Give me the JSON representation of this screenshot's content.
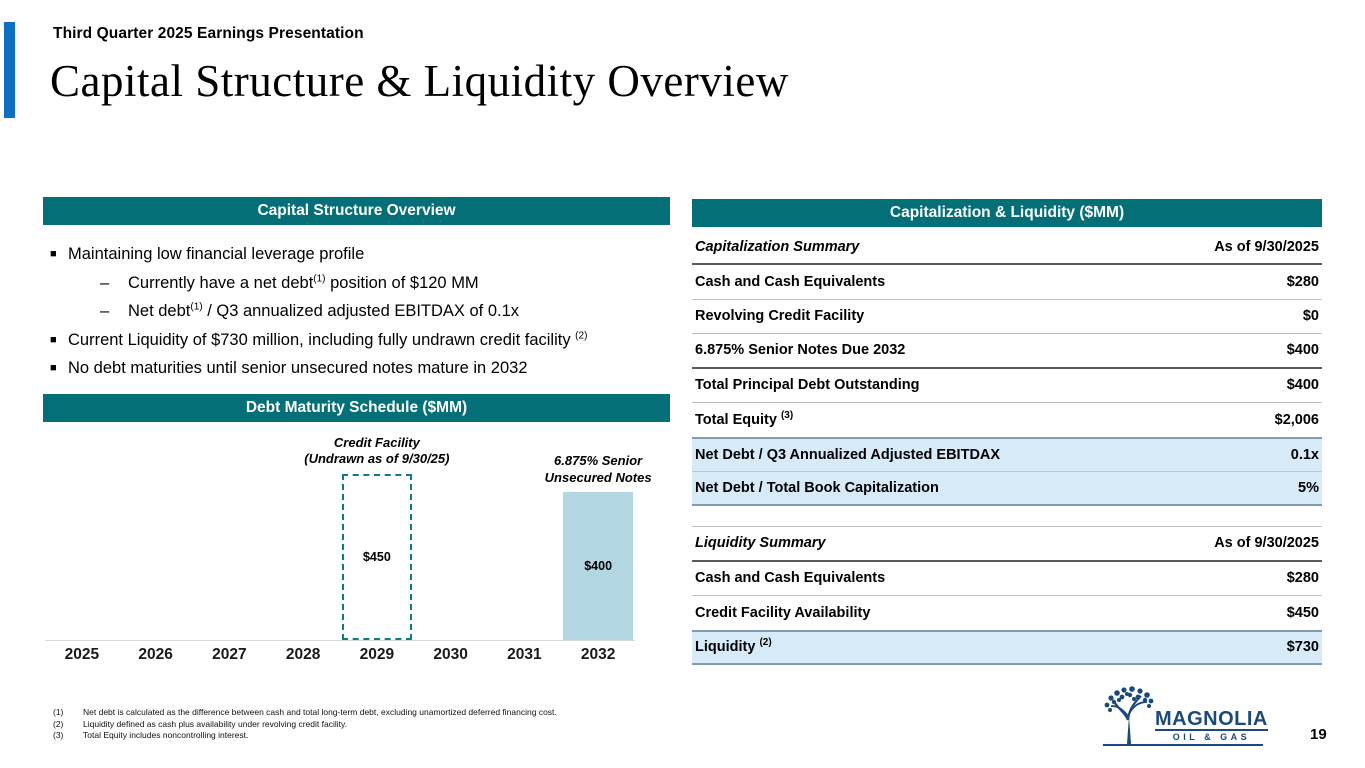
{
  "slide": {
    "eyebrow": "Third Quarter 2025 Earnings Presentation",
    "title": "Capital Structure & Liquidity Overview",
    "page_number": "19"
  },
  "left_panel": {
    "header": "Capital Structure Overview",
    "bullets": {
      "b1": "Maintaining low financial leverage profile",
      "b1_sub1_pre": "Currently have a net debt",
      "b1_sub1_sup": "(1)",
      "b1_sub1_post": " position of $120 MM",
      "b1_sub2_pre": "Net debt",
      "b1_sub2_sup": "(1)",
      "b1_sub2_post": " / Q3 annualized adjusted EBITDAX of 0.1x",
      "b2_pre": "Current Liquidity of $730 million, including fully undrawn credit facility ",
      "b2_sup": "(2)",
      "b3": "No debt maturities until senior unsecured notes mature in 2032"
    }
  },
  "chart_section": {
    "header": "Debt Maturity Schedule ($MM)"
  },
  "chart_data": {
    "type": "bar",
    "title": "Debt Maturity Schedule ($MM)",
    "categories": [
      "2025",
      "2026",
      "2027",
      "2028",
      "2029",
      "2030",
      "2031",
      "2032"
    ],
    "values": [
      0,
      0,
      0,
      0,
      450,
      0,
      0,
      400
    ],
    "ylim": [
      0,
      500
    ],
    "grid": false,
    "xlabel": "",
    "ylabel": "",
    "bars": [
      {
        "category": "2029",
        "value": 450,
        "label": "$450",
        "annotation_line1": "Credit Facility",
        "annotation_line2": "(Undrawn as of 9/30/25)",
        "style": "dashed-outline",
        "color": "#0e7b84"
      },
      {
        "category": "2032",
        "value": 400,
        "label": "$400",
        "annotation_line1": "6.875% Senior",
        "annotation_line2": "Unsecured Notes",
        "style": "solid",
        "color": "#b3d7e2"
      }
    ]
  },
  "right_panel": {
    "header": "Capitalization & Liquidity ($MM)",
    "cap_table": {
      "header_label": "Capitalization Summary",
      "header_value": "As of 9/30/2025",
      "rows": [
        {
          "label": "Cash and Cash Equivalents",
          "value": "$280"
        },
        {
          "label": "Revolving Credit Facility",
          "value": "$0"
        },
        {
          "label": "6.875% Senior Notes Due 2032",
          "value": "$400"
        },
        {
          "label": "Total Principal Debt Outstanding",
          "value": "$400"
        },
        {
          "label": "Total Equity ",
          "sup": "(3)",
          "value": "$2,006"
        },
        {
          "label": "Net Debt / Q3 Annualized Adjusted EBITDAX",
          "value": "0.1x",
          "highlight": true
        },
        {
          "label": "Net Debt / Total Book Capitalization",
          "value": "5%",
          "highlight": true
        }
      ]
    },
    "liq_table": {
      "header_label": "Liquidity Summary",
      "header_value": "As of 9/30/2025",
      "rows": [
        {
          "label": "Cash and Cash Equivalents",
          "value": "$280"
        },
        {
          "label": "Credit Facility Availability",
          "value": "$450"
        },
        {
          "label": "Liquidity ",
          "sup": "(2)",
          "value": "$730",
          "highlight": true
        }
      ]
    }
  },
  "footnotes": [
    {
      "num": "(1)",
      "text": "Net debt is calculated as the difference between cash and total long-term debt, excluding unamortized deferred financing cost."
    },
    {
      "num": "(2)",
      "text": "Liquidity defined as cash plus availability under revolving credit facility."
    },
    {
      "num": "(3)",
      "text": "Total Equity includes noncontrolling interest."
    }
  ],
  "logo": {
    "name": "MAGNOLIA",
    "tagline": "OIL & GAS"
  },
  "colors": {
    "teal": "#046f77",
    "accent_blue": "#0f6fc5",
    "highlight_blue": "#d6eaf8",
    "bar_fill": "#b3d7e2",
    "bar_outline": "#0e7b84",
    "logo_navy": "#1b4a7a"
  }
}
